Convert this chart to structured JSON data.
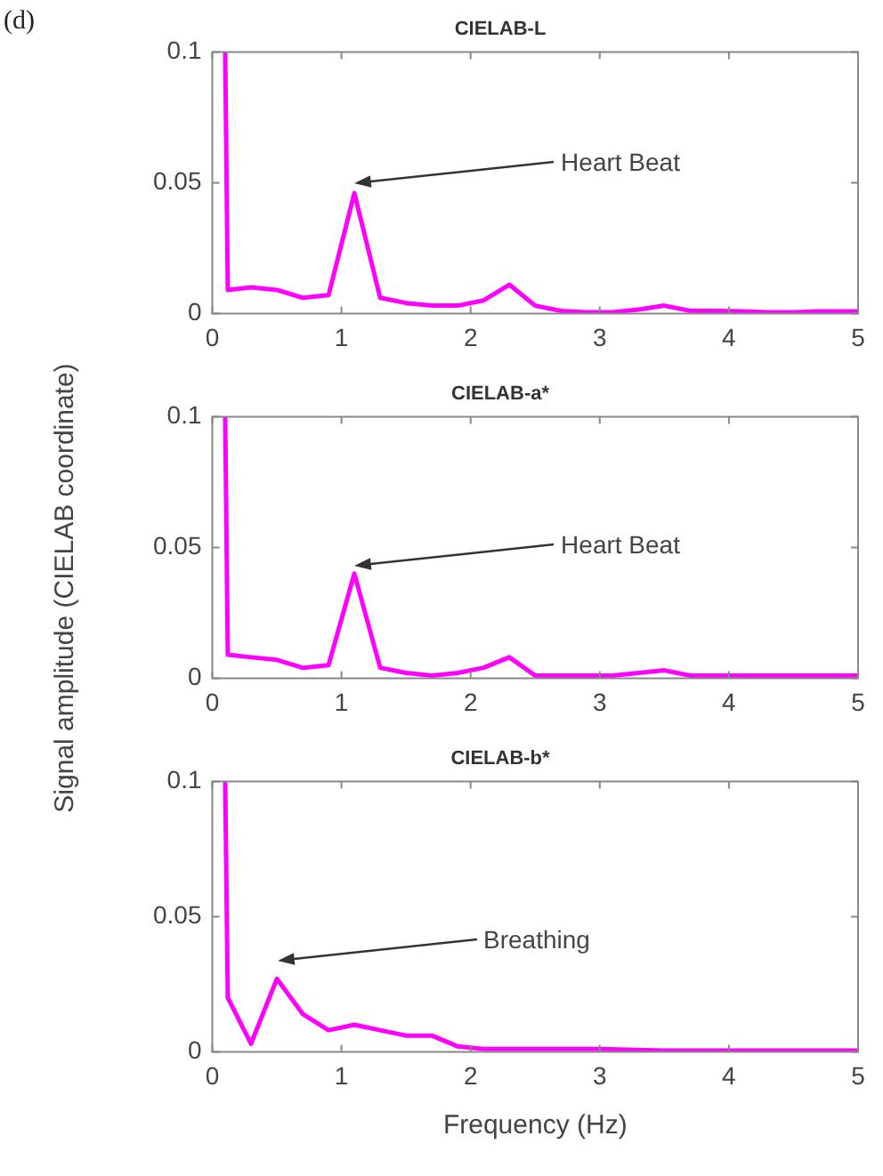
{
  "chart_data": [
    {
      "type": "line",
      "title": "CIELAB-L",
      "annotations": [
        "(d)",
        "Heart Beat"
      ],
      "xlim": [
        0,
        5
      ],
      "xticks": [
        0,
        1,
        2,
        3,
        4,
        5
      ],
      "ylim": [
        0,
        0.1
      ],
      "yticks": [
        0,
        0.05,
        0.1
      ],
      "grid": false,
      "legend": false,
      "marker": "none",
      "series": [
        {
          "color": "#ff00ff",
          "x": [
            0.1,
            0.12,
            0.3,
            0.5,
            0.7,
            0.9,
            1.1,
            1.3,
            1.5,
            1.7,
            1.9,
            2.1,
            2.3,
            2.5,
            2.7,
            2.9,
            3.1,
            3.3,
            3.5,
            3.7,
            3.9,
            4.1,
            4.3,
            4.5,
            4.7,
            4.9,
            5
          ],
          "values": [
            0.1,
            0.009,
            0.01,
            0.009,
            0.006,
            0.007,
            0.046,
            0.006,
            0.004,
            0.003,
            0.003,
            0.005,
            0.011,
            0.003,
            0.001,
            0.0005,
            0.0005,
            0.0015,
            0.003,
            0.001,
            0.001,
            0.0008,
            0.0005,
            0.0005,
            0.0008,
            0.0008,
            0.0008
          ]
        }
      ]
    },
    {
      "type": "line",
      "title": "CIELAB-a*",
      "ylabel": "Signal amplitude (CIELAB coordinate)",
      "annotations": [
        "Heart Beat"
      ],
      "xlim": [
        0,
        5
      ],
      "xticks": [
        0,
        1,
        2,
        3,
        4,
        5
      ],
      "ylim": [
        0,
        0.1
      ],
      "yticks": [
        0,
        0.05,
        0.1
      ],
      "grid": false,
      "legend": false,
      "marker": "none",
      "series": [
        {
          "color": "#ff00ff",
          "x": [
            0.1,
            0.12,
            0.3,
            0.5,
            0.7,
            0.9,
            1.1,
            1.3,
            1.5,
            1.7,
            1.9,
            2.1,
            2.3,
            2.5,
            2.7,
            2.9,
            3.1,
            3.3,
            3.5,
            3.7,
            3.9,
            4.1,
            4.3,
            4.5,
            4.7,
            4.9,
            5
          ],
          "values": [
            0.1,
            0.009,
            0.008,
            0.007,
            0.004,
            0.005,
            0.04,
            0.004,
            0.002,
            0.001,
            0.002,
            0.004,
            0.008,
            0.001,
            0.001,
            0.001,
            0.001,
            0.002,
            0.003,
            0.001,
            0.001,
            0.001,
            0.001,
            0.001,
            0.001,
            0.001,
            0.001
          ]
        }
      ]
    },
    {
      "type": "line",
      "title": "CIELAB-b*",
      "xlabel": "Frequency (Hz)",
      "annotations": [
        "Breathing"
      ],
      "xlim": [
        0,
        5
      ],
      "xticks": [
        0,
        1,
        2,
        3,
        4,
        5
      ],
      "ylim": [
        0,
        0.1
      ],
      "yticks": [
        0,
        0.05,
        0.1
      ],
      "grid": false,
      "legend": false,
      "marker": "none",
      "series": [
        {
          "color": "#ff00ff",
          "x": [
            0.1,
            0.12,
            0.3,
            0.5,
            0.7,
            0.9,
            1.1,
            1.3,
            1.5,
            1.7,
            1.9,
            2.1,
            2.5,
            3,
            3.5,
            4,
            4.5,
            5
          ],
          "values": [
            0.1,
            0.02,
            0.003,
            0.027,
            0.014,
            0.008,
            0.01,
            0.008,
            0.006,
            0.006,
            0.002,
            0.001,
            0.001,
            0.001,
            0.0005,
            0.0005,
            0.0005,
            0.0005
          ]
        }
      ]
    }
  ]
}
